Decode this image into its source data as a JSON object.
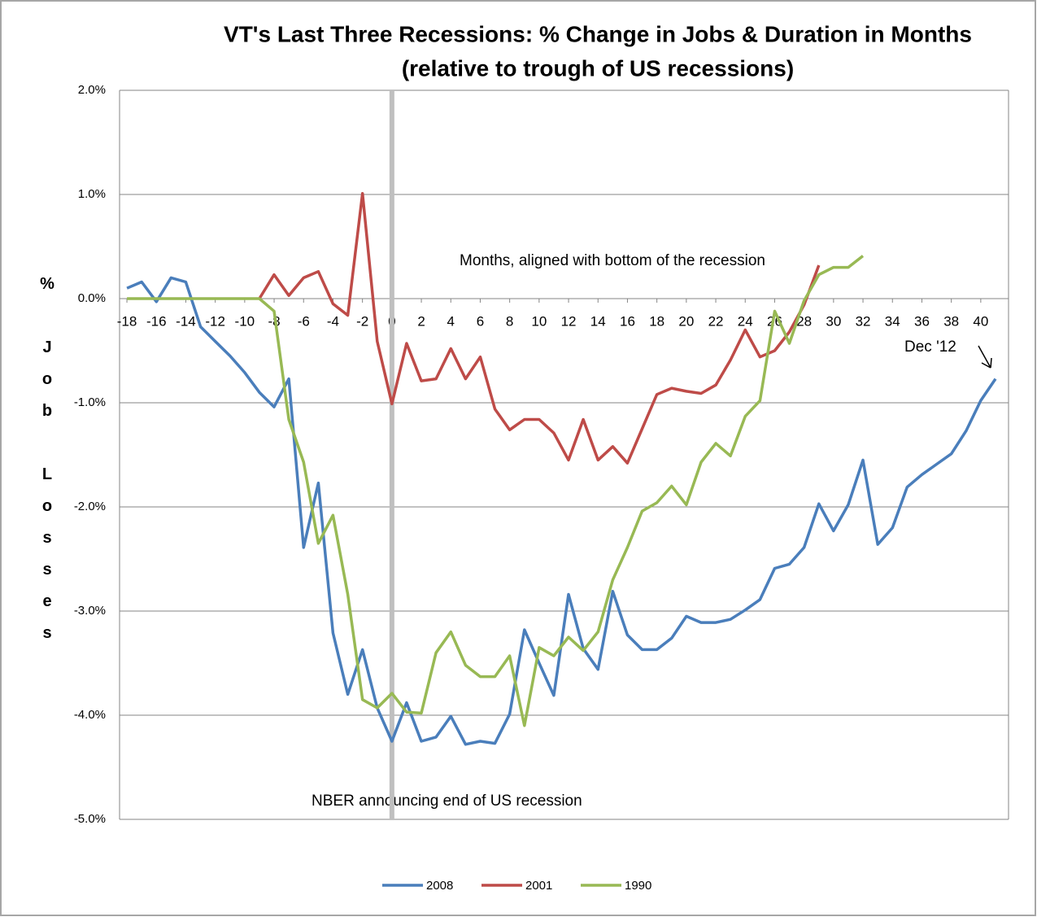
{
  "chart_data": {
    "type": "line",
    "title": "VT's Last Three Recessions: % Change in Jobs & Duration in Months",
    "subtitle": "(relative to trough of US recessions)",
    "y_label": "% Job Losses",
    "annotations": [
      "Months, aligned with bottom of the recession",
      "NBER announcing end of US recession",
      "Dec '12"
    ],
    "reference_line_x": 0,
    "x": [
      -18,
      -17,
      -16,
      -15,
      -14,
      -13,
      -12,
      -11,
      -10,
      -9,
      -8,
      -7,
      -6,
      -5,
      -4,
      -3,
      -2,
      -1,
      0,
      1,
      2,
      3,
      4,
      5,
      6,
      7,
      8,
      9,
      10,
      11,
      12,
      13,
      14,
      15,
      16,
      17,
      18,
      19,
      20,
      21,
      22,
      23,
      24,
      25,
      26,
      27,
      28,
      29,
      30,
      31,
      32,
      33,
      34,
      35,
      36,
      37,
      38,
      39,
      40,
      41
    ],
    "xlim": [
      -18.5,
      41.5
    ],
    "xticks": [
      -18,
      -16,
      -14,
      -12,
      -10,
      -8,
      -6,
      -4,
      -2,
      0,
      2,
      4,
      6,
      8,
      10,
      12,
      14,
      16,
      18,
      20,
      22,
      24,
      26,
      28,
      30,
      32,
      34,
      36,
      38,
      40
    ],
    "ylim": [
      -5,
      2
    ],
    "yticks": [
      {
        "value": 2,
        "label": "2.0%"
      },
      {
        "value": 1,
        "label": "1.0%"
      },
      {
        "value": 0,
        "label": "0.0%"
      },
      {
        "value": -1,
        "label": "-1.0%"
      },
      {
        "value": -2,
        "label": "-2.0%"
      },
      {
        "value": -3,
        "label": "-3.0%"
      },
      {
        "value": -4,
        "label": "-4.0%"
      },
      {
        "value": -5,
        "label": "-5.0%"
      }
    ],
    "grid": true,
    "legend": "bottom",
    "series": [
      {
        "name": "2008",
        "color": "#4a7ebb",
        "values": [
          0.1,
          0.16,
          -0.03,
          0.2,
          0.16,
          -0.27,
          -0.41,
          -0.55,
          -0.71,
          -0.9,
          -1.04,
          -0.77,
          -2.39,
          -1.77,
          -3.21,
          -3.8,
          -3.37,
          -3.93,
          -4.25,
          -3.88,
          -4.25,
          -4.21,
          -4.01,
          -4.28,
          -4.25,
          -4.27,
          -3.99,
          -3.18,
          -3.5,
          -3.81,
          -2.84,
          -3.36,
          -3.56,
          -2.81,
          -3.23,
          -3.37,
          -3.37,
          -3.26,
          -3.05,
          -3.11,
          -3.11,
          -3.08,
          -2.99,
          -2.89,
          -2.59,
          -2.55,
          -2.39,
          -1.97,
          -2.23,
          -1.98,
          -1.55,
          -2.36,
          -2.2,
          -1.81,
          -1.69,
          -1.59,
          -1.49,
          -1.27,
          -0.98,
          -0.77
        ]
      },
      {
        "name": "2001",
        "color": "#be4b48",
        "values": [
          null,
          null,
          null,
          null,
          null,
          null,
          null,
          null,
          null,
          0.0,
          0.23,
          0.03,
          0.2,
          0.26,
          -0.05,
          -0.16,
          1.01,
          -0.41,
          -1.01,
          -0.43,
          -0.79,
          -0.77,
          -0.48,
          -0.77,
          -0.56,
          -1.06,
          -1.26,
          -1.16,
          -1.16,
          -1.29,
          -1.55,
          -1.16,
          -1.55,
          -1.42,
          -1.58,
          -1.25,
          -0.92,
          -0.86,
          -0.89,
          -0.91,
          -0.83,
          -0.59,
          -0.3,
          -0.56,
          -0.5,
          -0.32,
          -0.06,
          0.32,
          null,
          null,
          null,
          null,
          null,
          null,
          null,
          null,
          null,
          null,
          null,
          null
        ]
      },
      {
        "name": "1990",
        "color": "#98b954",
        "values": [
          0.0,
          0.0,
          0.0,
          0.0,
          0.0,
          0.0,
          0.0,
          0.0,
          0.0,
          0.0,
          -0.12,
          -1.16,
          -1.57,
          -2.35,
          -2.08,
          -2.84,
          -3.85,
          -3.93,
          -3.79,
          -3.97,
          -3.98,
          -3.4,
          -3.2,
          -3.52,
          -3.63,
          -3.63,
          -3.43,
          -4.1,
          -3.35,
          -3.43,
          -3.25,
          -3.38,
          -3.2,
          -2.7,
          -2.39,
          -2.04,
          -1.96,
          -1.8,
          -1.98,
          -1.57,
          -1.39,
          -1.51,
          -1.13,
          -0.98,
          -0.12,
          -0.43,
          -0.02,
          0.23,
          0.3,
          0.3,
          0.41,
          null,
          null,
          null,
          null,
          null,
          null,
          null,
          null,
          null
        ]
      }
    ]
  }
}
